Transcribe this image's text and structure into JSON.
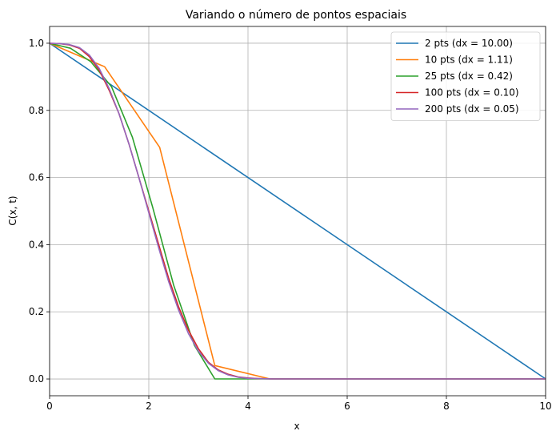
{
  "chart_data": {
    "type": "line",
    "title": "Variando o número de pontos espaciais",
    "xlabel": "x",
    "ylabel": "C(x, t)",
    "xlim": [
      0,
      10
    ],
    "ylim": [
      -0.05,
      1.05
    ],
    "xticks": [
      0,
      2,
      4,
      6,
      8,
      10
    ],
    "yticks": [
      0.0,
      0.2,
      0.4,
      0.6,
      0.8,
      1.0
    ],
    "xtick_labels": [
      "0",
      "2",
      "4",
      "6",
      "8",
      "10"
    ],
    "ytick_labels": [
      "0.0",
      "0.2",
      "0.4",
      "0.6",
      "0.8",
      "1.0"
    ],
    "grid": true,
    "legend_position": "top-right",
    "series": [
      {
        "name": "2 pts (dx = 10.00)",
        "color": "#1f77b4",
        "x": [
          0,
          10
        ],
        "y": [
          1.0,
          0.0
        ]
      },
      {
        "name": "10 pts (dx = 1.11)",
        "color": "#ff7f0e",
        "x": [
          0,
          1.11,
          2.22,
          3.33,
          4.44,
          5.56,
          6.67,
          7.78,
          8.89,
          10
        ],
        "y": [
          1.0,
          0.93,
          0.69,
          0.04,
          0.0,
          0.0,
          0.0,
          0.0,
          0.0,
          0.0
        ]
      },
      {
        "name": "25 pts (dx = 0.42)",
        "color": "#2ca02c",
        "x": [
          0,
          0.42,
          0.83,
          1.25,
          1.67,
          2.08,
          2.5,
          2.92,
          3.33,
          3.75,
          4.17,
          4.58,
          5.0,
          5.42,
          5.83,
          6.25,
          6.67,
          7.08,
          7.5,
          7.92,
          8.33,
          8.75,
          9.17,
          9.58,
          10
        ],
        "y": [
          1.0,
          0.985,
          0.945,
          0.87,
          0.72,
          0.51,
          0.28,
          0.1,
          0.0,
          0.0,
          0.0,
          0.0,
          0.0,
          0.0,
          0.0,
          0.0,
          0.0,
          0.0,
          0.0,
          0.0,
          0.0,
          0.0,
          0.0,
          0.0,
          0.0
        ]
      },
      {
        "name": "100 pts (dx = 0.10)",
        "color": "#d62728",
        "x": [
          0,
          0.2,
          0.4,
          0.6,
          0.8,
          1.0,
          1.2,
          1.4,
          1.6,
          1.8,
          2.0,
          2.2,
          2.4,
          2.6,
          2.8,
          3.0,
          3.2,
          3.4,
          3.6,
          3.8,
          4.0,
          4.2,
          4.5,
          5,
          6,
          7,
          8,
          9,
          10
        ],
        "y": [
          1.0,
          0.999,
          0.995,
          0.985,
          0.96,
          0.92,
          0.86,
          0.79,
          0.7,
          0.6,
          0.5,
          0.4,
          0.3,
          0.215,
          0.145,
          0.09,
          0.05,
          0.027,
          0.014,
          0.006,
          0.003,
          0.001,
          0.0,
          0.0,
          0.0,
          0.0,
          0.0,
          0.0,
          0.0
        ]
      },
      {
        "name": "200 pts (dx = 0.05)",
        "color": "#9467bd",
        "x": [
          0,
          0.2,
          0.4,
          0.6,
          0.8,
          1.0,
          1.2,
          1.4,
          1.6,
          1.8,
          2.0,
          2.2,
          2.4,
          2.6,
          2.8,
          3.0,
          3.2,
          3.4,
          3.6,
          3.8,
          4.0,
          4.2,
          4.5,
          5,
          6,
          7,
          8,
          9,
          10
        ],
        "y": [
          1.0,
          0.999,
          0.996,
          0.987,
          0.965,
          0.925,
          0.865,
          0.79,
          0.7,
          0.6,
          0.495,
          0.39,
          0.29,
          0.205,
          0.135,
          0.083,
          0.047,
          0.025,
          0.012,
          0.005,
          0.002,
          0.001,
          0.0,
          0.0,
          0.0,
          0.0,
          0.0,
          0.0,
          0.0
        ]
      }
    ]
  }
}
